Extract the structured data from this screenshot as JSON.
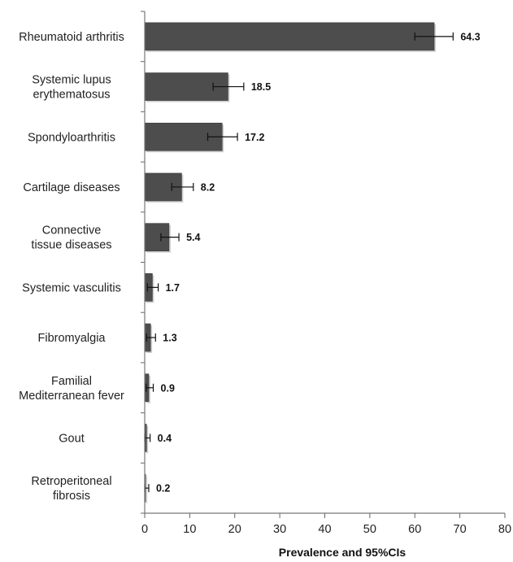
{
  "chart_data": {
    "type": "bar",
    "orientation": "horizontal",
    "categories": [
      [
        "Rheumatoid arthritis"
      ],
      [
        "Systemic lupus",
        "erythematosus"
      ],
      [
        "Spondyloarthritis"
      ],
      [
        "Cartilage diseases"
      ],
      [
        "Connective",
        "tissue diseases"
      ],
      [
        "Systemic vasculitis"
      ],
      [
        "Fibromyalgia"
      ],
      [
        "Familial",
        "Mediterranean fever"
      ],
      [
        "Gout"
      ],
      [
        "Retroperitoneal",
        "fibrosis"
      ]
    ],
    "values": [
      64.3,
      18.5,
      17.2,
      8.2,
      5.4,
      1.7,
      1.3,
      0.9,
      0.4,
      0.2
    ],
    "value_labels": [
      "64.3",
      "18.5",
      "17.2",
      "8.2",
      "5.4",
      "1.7",
      "1.3",
      "0.9",
      "0.4",
      "0.2"
    ],
    "ci_low": [
      60.0,
      15.2,
      14.0,
      6.0,
      3.6,
      0.6,
      0.4,
      0.3,
      0.0,
      0.0
    ],
    "ci_high": [
      68.5,
      22.0,
      20.6,
      10.8,
      7.6,
      3.0,
      2.4,
      1.9,
      1.2,
      0.9
    ],
    "xticks": [
      0,
      10,
      20,
      30,
      40,
      50,
      60,
      70,
      80
    ],
    "xlim": [
      0,
      80
    ],
    "title": "",
    "xlabel": "Prevalence and 95%CIs",
    "ylabel": "",
    "grid": false,
    "bar_color": "#4d4d4d",
    "text_color": "#222222"
  }
}
